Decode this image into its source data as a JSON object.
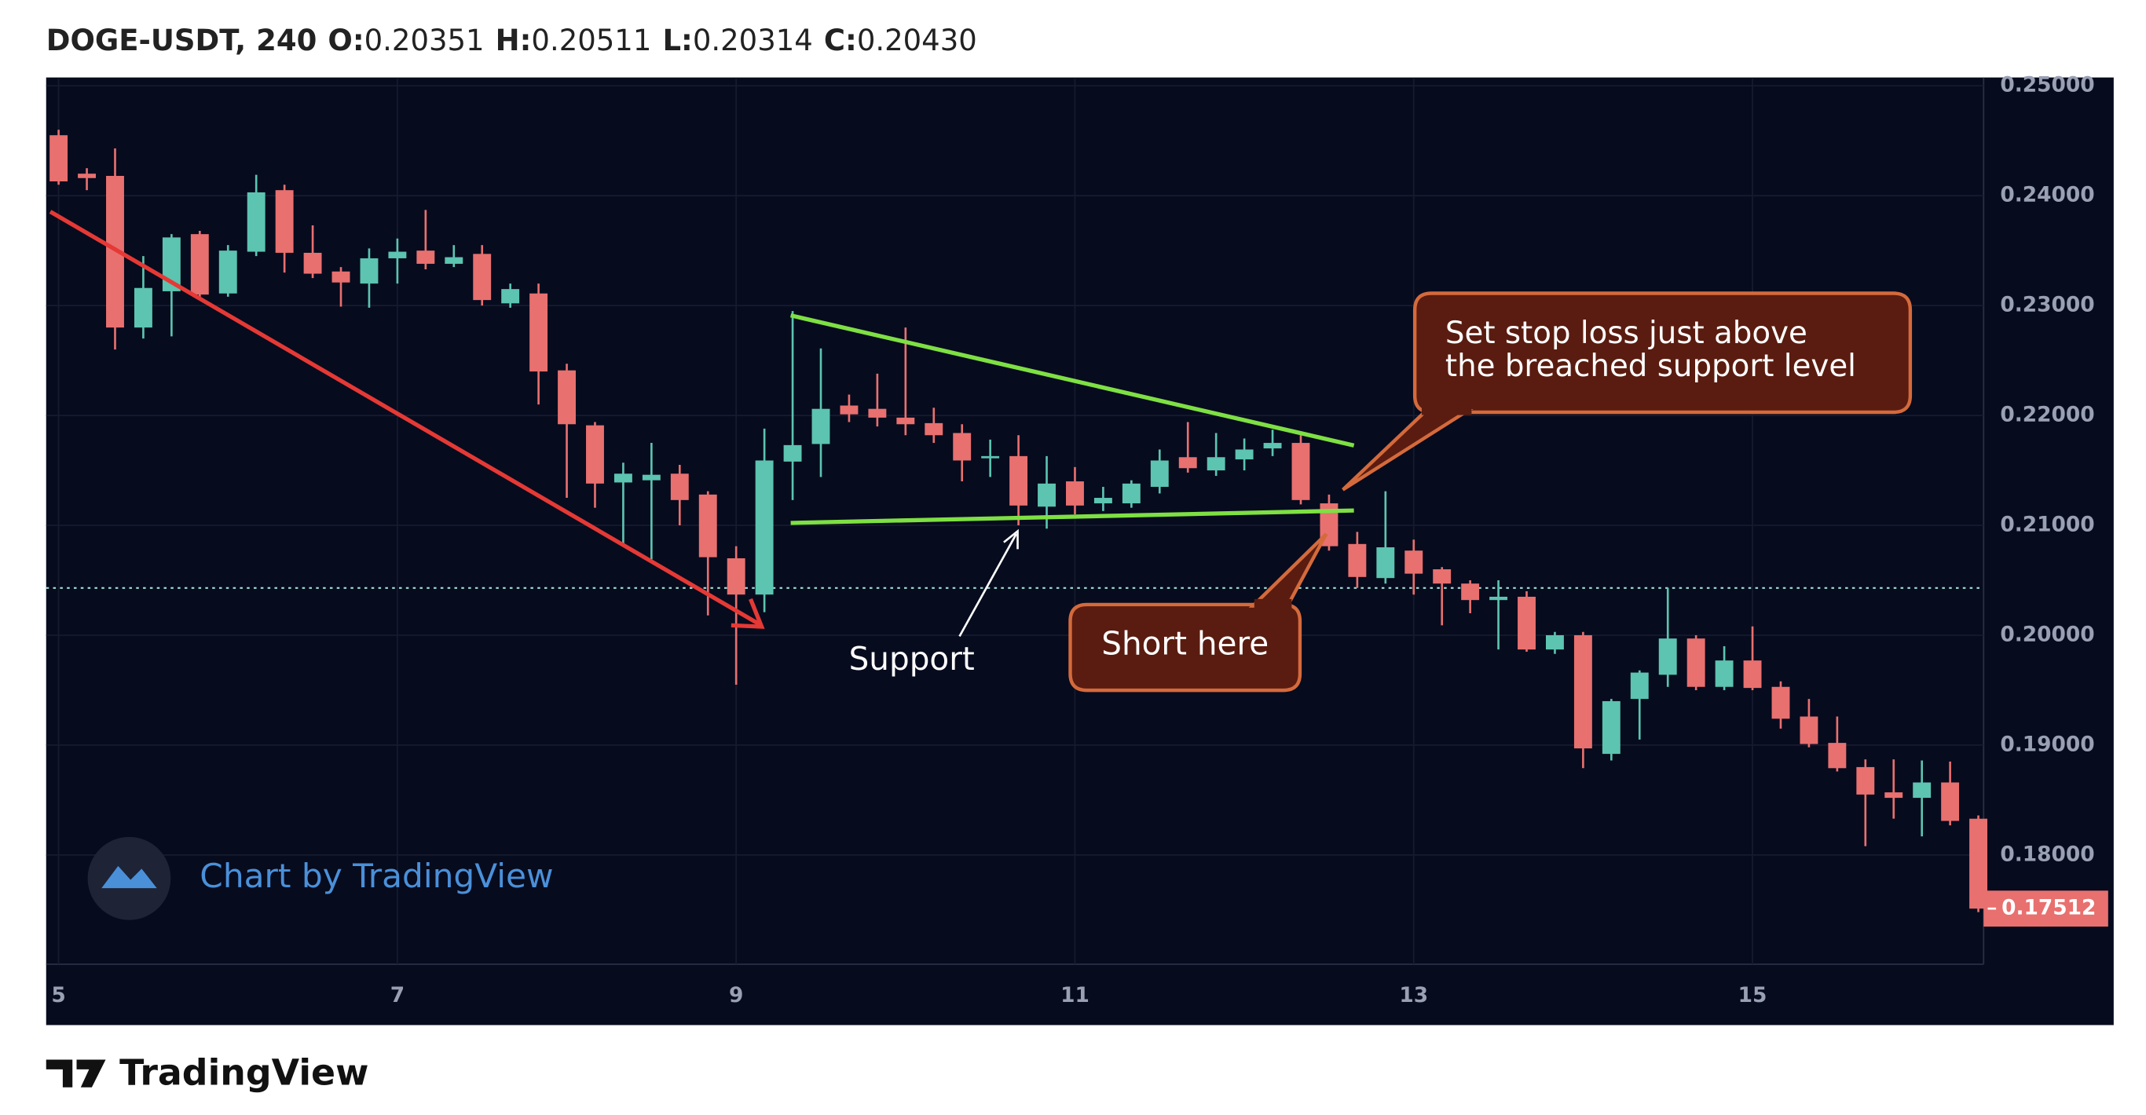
{
  "header": {
    "symbol": "DOGE-USDT, 240",
    "ohlc": [
      {
        "label": "O:",
        "value": "0.20351"
      },
      {
        "label": "H:",
        "value": "0.20511"
      },
      {
        "label": "L:",
        "value": "0.20314"
      },
      {
        "label": "C:",
        "value": "0.20430"
      }
    ]
  },
  "chart_data": {
    "type": "candlestick",
    "categories": [
      "5",
      null,
      null,
      null,
      null,
      null,
      null,
      null,
      null,
      null,
      null,
      null,
      "7",
      null,
      null,
      null,
      null,
      null,
      null,
      null,
      null,
      null,
      null,
      null,
      "9",
      null,
      null,
      null,
      null,
      null,
      null,
      null,
      null,
      null,
      null,
      null,
      "11",
      null,
      null,
      null,
      null,
      null,
      null,
      null,
      null,
      null,
      null,
      null,
      "13",
      null,
      null,
      null,
      null,
      null,
      null,
      null,
      null,
      null,
      null,
      null,
      "15",
      null,
      null,
      null,
      null,
      null,
      null,
      null,
      null
    ],
    "open": [
      0.2455,
      0.242,
      0.2418,
      0.228,
      0.2313,
      0.2365,
      0.2311,
      0.2349,
      0.2405,
      0.2348,
      0.2331,
      0.232,
      0.2343,
      0.235,
      0.2338,
      0.2347,
      0.2302,
      0.2311,
      0.2241,
      0.2191,
      0.2139,
      0.2141,
      0.2147,
      0.2128,
      0.207,
      0.2037,
      0.2158,
      0.2174,
      0.2209,
      0.2206,
      0.2198,
      0.2193,
      0.2184,
      0.2161,
      0.2163,
      0.2117,
      0.214,
      0.212,
      0.212,
      0.2135,
      0.2162,
      0.215,
      0.216,
      0.217,
      0.2175,
      0.212,
      0.2083,
      0.2052,
      0.2077,
      0.206,
      0.2047,
      0.2032,
      0.2035,
      0.1987,
      0.2,
      0.1892,
      0.1942,
      0.1964,
      0.1997,
      0.1953,
      0.1977,
      0.1953,
      0.1926,
      0.1902,
      0.188,
      0.1857,
      0.1852,
      0.1866,
      0.1833
    ],
    "high": [
      0.246,
      0.2425,
      0.2443,
      0.2345,
      0.2365,
      0.2368,
      0.2355,
      0.2419,
      0.241,
      0.2373,
      0.2335,
      0.2352,
      0.2361,
      0.2387,
      0.2355,
      0.2355,
      0.232,
      0.232,
      0.2247,
      0.2194,
      0.2157,
      0.2175,
      0.2155,
      0.2131,
      0.2081,
      0.2188,
      0.2295,
      0.2261,
      0.2219,
      0.2238,
      0.228,
      0.2207,
      0.2192,
      0.2178,
      0.2182,
      0.2163,
      0.2153,
      0.2135,
      0.2141,
      0.2169,
      0.2194,
      0.2184,
      0.2179,
      0.2187,
      0.2182,
      0.2128,
      0.2094,
      0.2131,
      0.2087,
      0.2062,
      0.205,
      0.205,
      0.204,
      0.2003,
      0.2003,
      0.1942,
      0.1968,
      0.2043,
      0.2,
      0.199,
      0.2008,
      0.1958,
      0.1942,
      0.1926,
      0.1887,
      0.1887,
      0.1886,
      0.1885,
      0.1836
    ],
    "low": [
      0.241,
      0.2405,
      0.226,
      0.227,
      0.2272,
      0.2305,
      0.2308,
      0.2345,
      0.233,
      0.2325,
      0.2299,
      0.2298,
      0.232,
      0.2333,
      0.2335,
      0.23,
      0.2298,
      0.221,
      0.2125,
      0.2116,
      0.2081,
      0.2069,
      0.21,
      0.2018,
      0.1955,
      0.2021,
      0.2123,
      0.2144,
      0.2194,
      0.219,
      0.2182,
      0.2175,
      0.214,
      0.2144,
      0.21,
      0.2097,
      0.211,
      0.2113,
      0.2116,
      0.2129,
      0.2148,
      0.2145,
      0.215,
      0.2163,
      0.2119,
      0.2077,
      0.2043,
      0.2047,
      0.2037,
      0.2009,
      0.202,
      0.1987,
      0.1985,
      0.1983,
      0.1879,
      0.1886,
      0.1905,
      0.1953,
      0.195,
      0.195,
      0.195,
      0.1915,
      0.1898,
      0.1876,
      0.1808,
      0.1833,
      0.1817,
      0.1827,
      0.1748
    ],
    "close": [
      0.2413,
      0.2416,
      0.228,
      0.2316,
      0.2362,
      0.231,
      0.235,
      0.2403,
      0.2348,
      0.2329,
      0.2321,
      0.2343,
      0.2349,
      0.2338,
      0.2344,
      0.2305,
      0.2315,
      0.224,
      0.2192,
      0.2138,
      0.2147,
      0.2146,
      0.2123,
      0.2071,
      0.2037,
      0.2159,
      0.2173,
      0.2206,
      0.2201,
      0.2198,
      0.2192,
      0.2182,
      0.2159,
      0.2163,
      0.2118,
      0.2138,
      0.2118,
      0.2125,
      0.2138,
      0.2159,
      0.2152,
      0.2162,
      0.2169,
      0.2175,
      0.2123,
      0.2081,
      0.2053,
      0.208,
      0.2056,
      0.2047,
      0.2032,
      0.2035,
      0.1987,
      0.2,
      0.1897,
      0.194,
      0.1966,
      0.1997,
      0.1953,
      0.1977,
      0.1952,
      0.1924,
      0.1901,
      0.1879,
      0.1855,
      0.1852,
      0.1866,
      0.1831,
      0.17512
    ],
    "up_color": "#5cc4b0",
    "down_color": "#e8706f",
    "ylim": [
      0.17006,
      0.25063
    ],
    "yticks": [
      {
        "value": 0.18,
        "label": "0.18000"
      },
      {
        "value": 0.19,
        "label": "0.19000"
      },
      {
        "value": 0.2,
        "label": "0.20000"
      },
      {
        "value": 0.21,
        "label": "0.21000"
      },
      {
        "value": 0.22,
        "label": "0.22000"
      },
      {
        "value": 0.23,
        "label": "0.23000"
      },
      {
        "value": 0.24,
        "label": "0.24000"
      },
      {
        "value": 0.25,
        "label": "0.25000"
      }
    ],
    "price_line": 0.2043,
    "grid": true,
    "annotations": {
      "support": "Support",
      "short": "Short here",
      "stop_loss": [
        "Set stop loss just above",
        "the breached support level"
      ]
    },
    "attribution": "Chart by TradingView"
  },
  "footer": {
    "brand": "TradingView"
  }
}
